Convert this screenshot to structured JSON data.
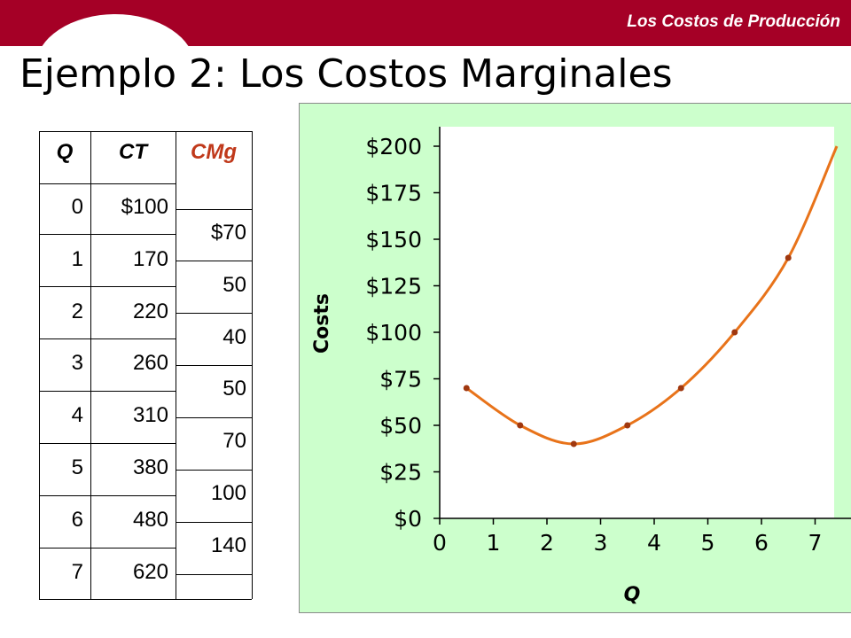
{
  "header": {
    "section_title": "Los Costos de Producción",
    "slide_title": "Ejemplo 2: Los Costos Marginales",
    "bar_color": "#a50026"
  },
  "table": {
    "headers": {
      "q": "Q",
      "ct": "CT",
      "cmg": "CMg"
    },
    "q": [
      "0",
      "1",
      "2",
      "3",
      "4",
      "5",
      "6",
      "7"
    ],
    "ct": [
      "$100",
      "170",
      "220",
      "260",
      "310",
      "380",
      "480",
      "620"
    ],
    "cmg": [
      "$70",
      "50",
      "40",
      "50",
      "70",
      "100",
      "140"
    ]
  },
  "chart_data": {
    "type": "line",
    "title": "",
    "xlabel": "Q",
    "ylabel": "Costs",
    "x": [
      0.5,
      1.5,
      2.5,
      3.5,
      4.5,
      5.5,
      6.5
    ],
    "series": [
      {
        "values": [
          70,
          50,
          40,
          50,
          70,
          100,
          140
        ],
        "color": "#e8731a"
      }
    ],
    "xlim": [
      0,
      7.5
    ],
    "ylim": [
      0,
      200
    ],
    "xticks": [
      "0",
      "1",
      "2",
      "3",
      "4",
      "5",
      "6",
      "7"
    ],
    "yticks": [
      "$0",
      "$25",
      "$50",
      "$75",
      "$100",
      "$125",
      "$150",
      "$175",
      "$200"
    ],
    "plot_background": "#ffffff",
    "chart_background": "#ccffcc",
    "grid": false,
    "legend": "none"
  }
}
